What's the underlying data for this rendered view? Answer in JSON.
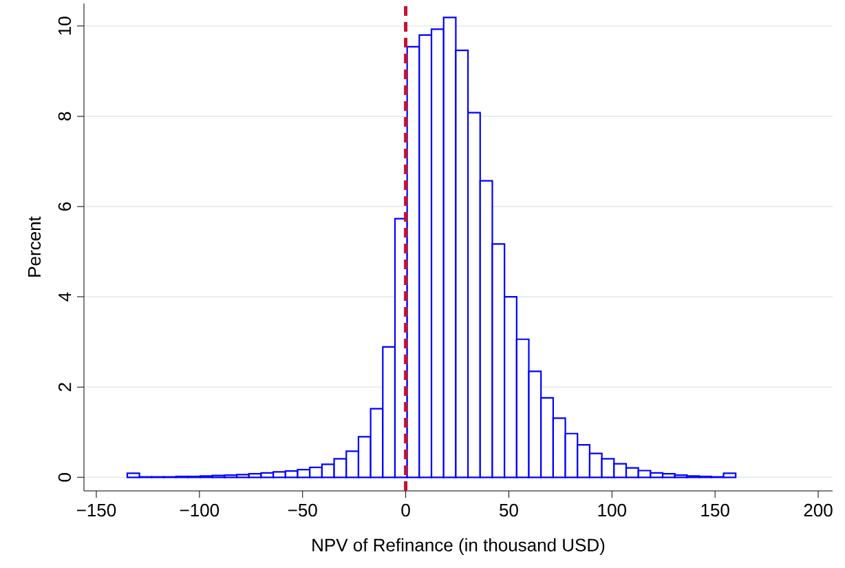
{
  "chart_data": {
    "type": "histogram",
    "xlabel": "NPV of Refinance (in thousand USD)",
    "ylabel": "Percent",
    "bins": [
      -135,
      -129.1,
      -123.2,
      -117.3,
      -111.4,
      -105.5,
      -99.6,
      -93.7,
      -87.8,
      -81.9,
      -76,
      -70.1,
      -64.2,
      -58.3,
      -52.4,
      -46.5,
      -40.6,
      -34.7,
      -28.8,
      -22.9,
      -17,
      -11.1,
      -5.2,
      0.7,
      6.6,
      12.5,
      18.4,
      24.3,
      30.2,
      36.1,
      42,
      47.9,
      53.8,
      59.7,
      65.6,
      71.5,
      77.4,
      83.3,
      89.2,
      95.1,
      101,
      106.9,
      112.8,
      118.7,
      124.6,
      130.5,
      136.4,
      142.3,
      148.2,
      154.1,
      160
    ],
    "values": [
      0.09,
      0.01,
      0.01,
      0.01,
      0.02,
      0.02,
      0.03,
      0.04,
      0.05,
      0.06,
      0.08,
      0.1,
      0.12,
      0.14,
      0.17,
      0.22,
      0.29,
      0.41,
      0.58,
      0.9,
      1.52,
      2.89,
      5.73,
      9.54,
      9.8,
      9.93,
      10.19,
      9.46,
      8.08,
      6.57,
      5.17,
      4.0,
      3.06,
      2.35,
      1.76,
      1.31,
      0.97,
      0.72,
      0.53,
      0.41,
      0.3,
      0.21,
      0.15,
      0.1,
      0.08,
      0.05,
      0.03,
      0.02,
      0.01,
      0.09
    ],
    "color": "#0000ff",
    "xlim": [
      -156,
      207
    ],
    "ylim": [
      -0.3,
      10.5
    ],
    "xticks": [
      {
        "value": -150,
        "label": "−150"
      },
      {
        "value": -100,
        "label": "−100"
      },
      {
        "value": -50,
        "label": "−50"
      },
      0,
      50,
      100,
      150,
      200
    ],
    "yticks": [
      0,
      2,
      4,
      6,
      8,
      10
    ],
    "grid": "y",
    "ref_lines": [
      {
        "axis": "x",
        "value": 0,
        "color": "#c8102e",
        "line_style": "dashed"
      }
    ]
  }
}
